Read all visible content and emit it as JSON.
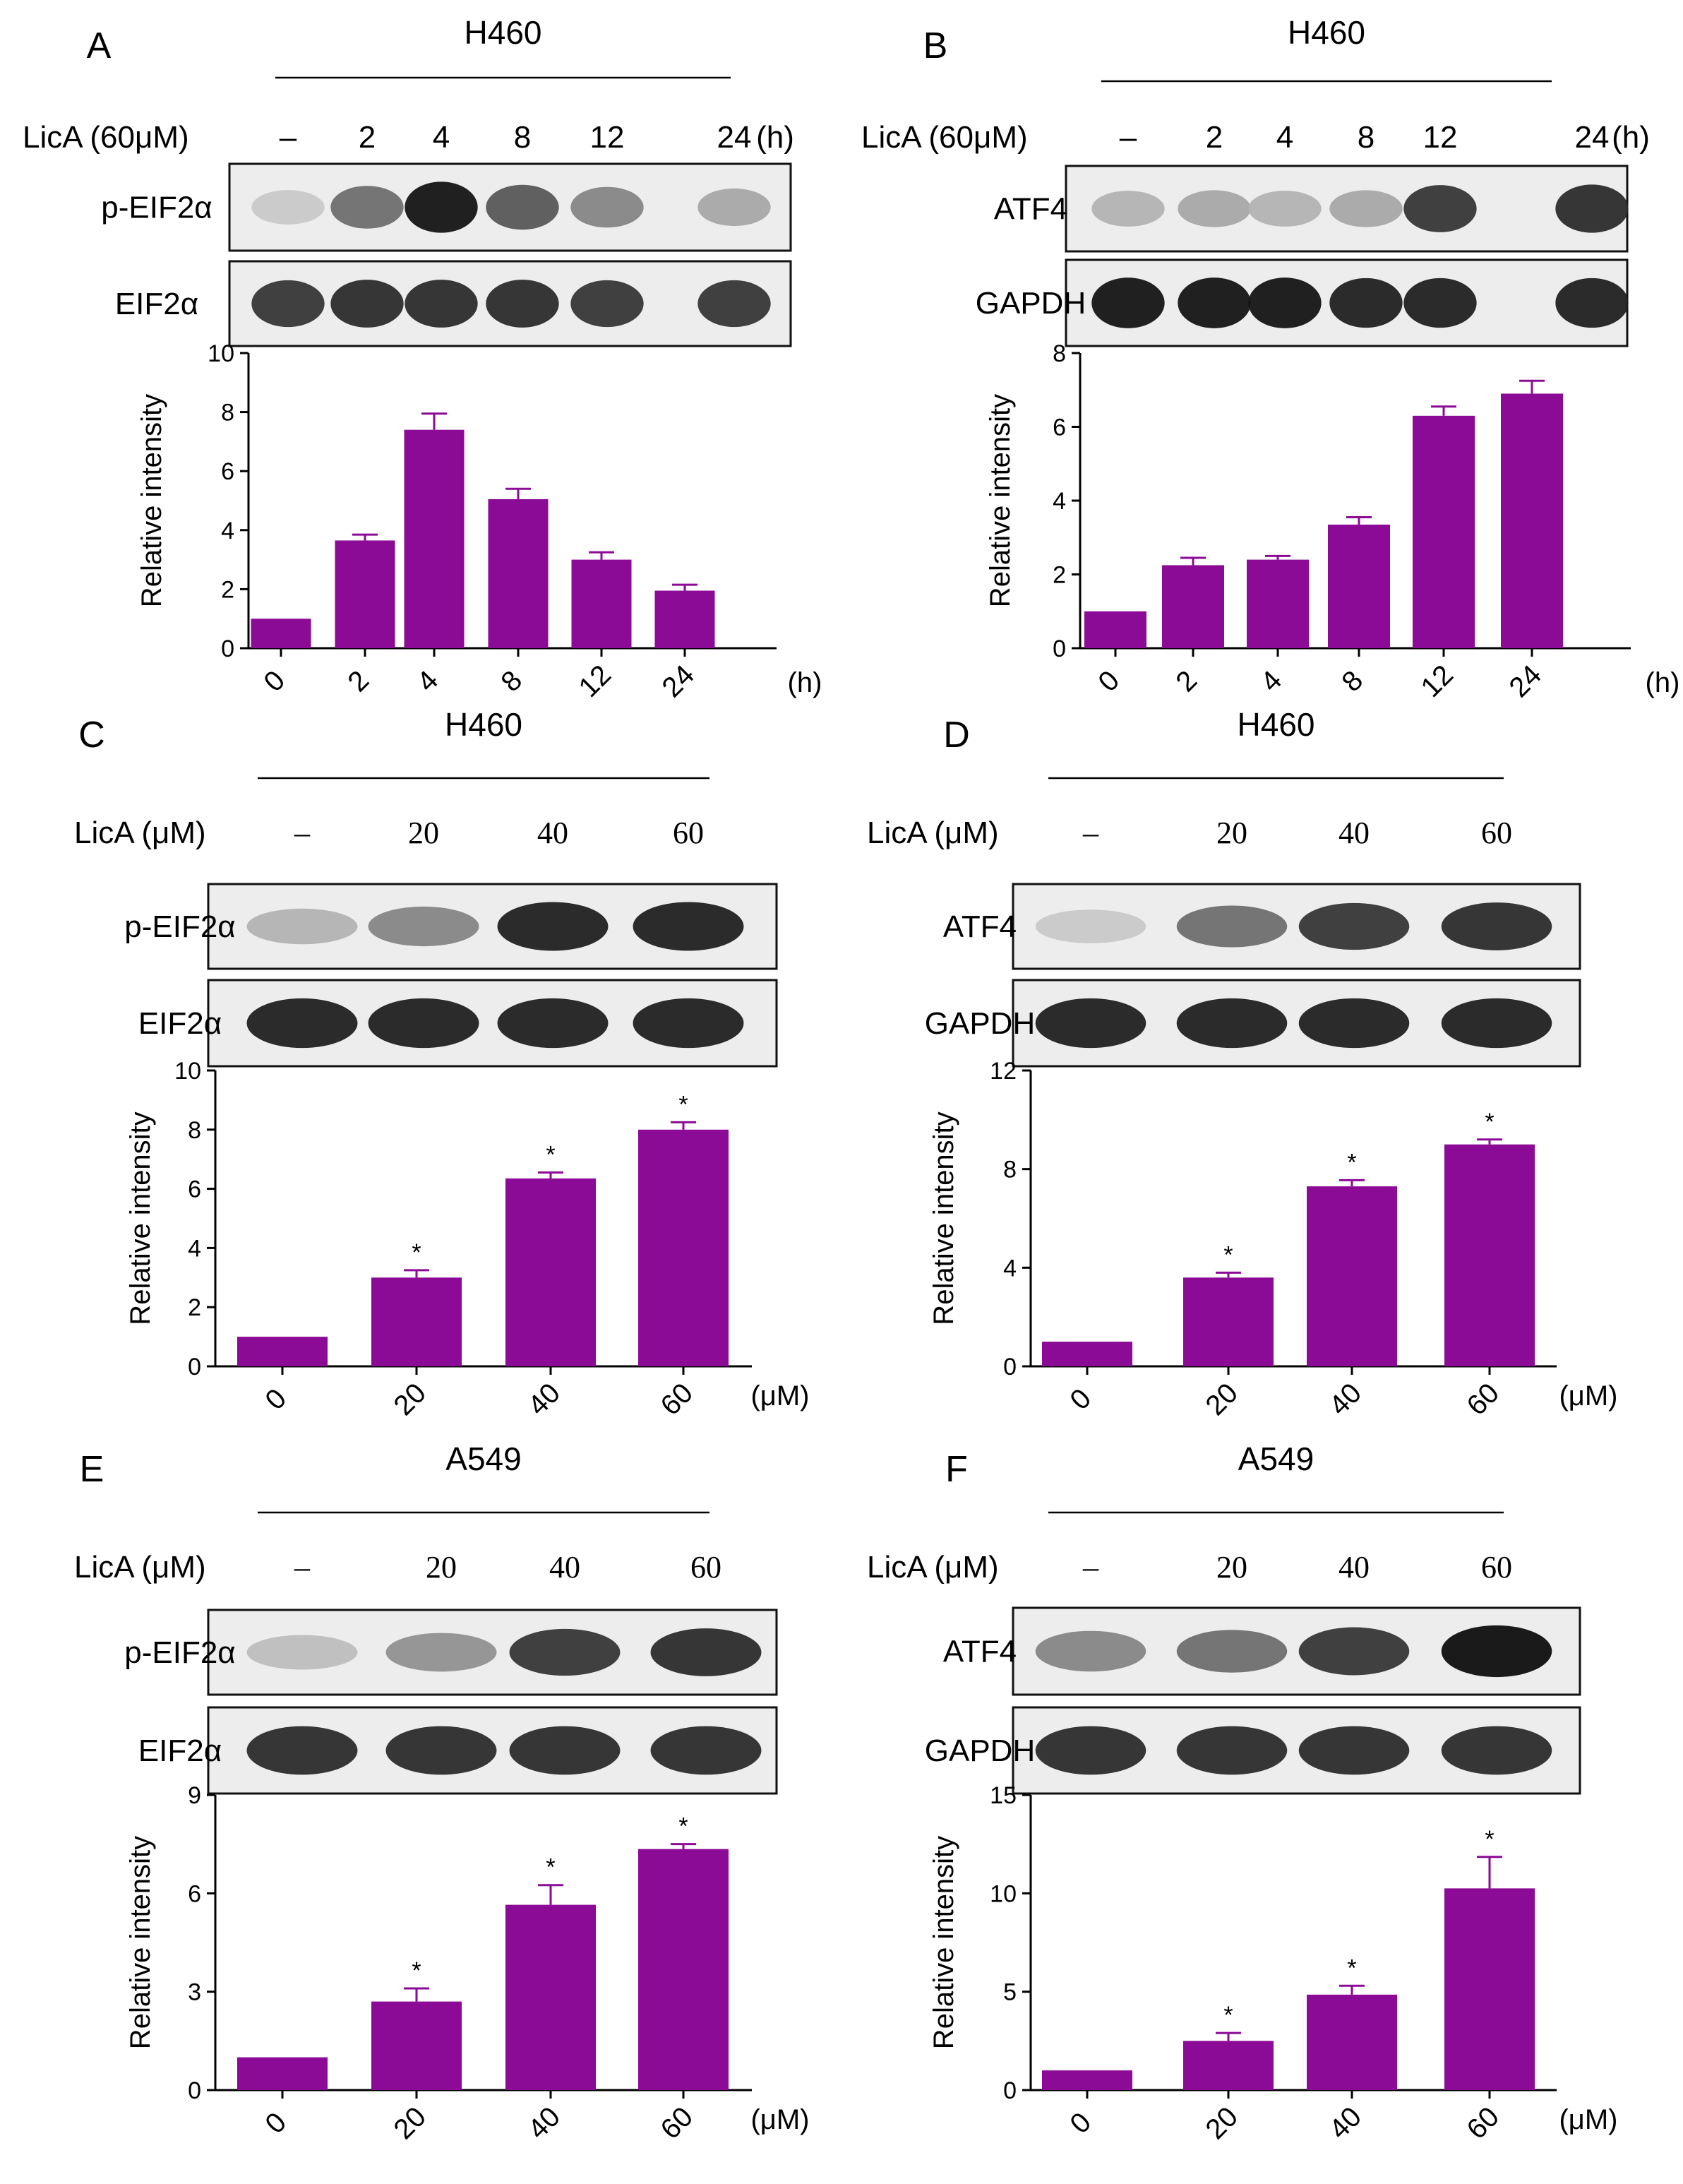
{
  "accent_color": "#8B0A96",
  "chart_data": [
    {
      "id": "A",
      "type": "bar",
      "panel_label": "A",
      "cell_line": "H460",
      "treatment_label": "LicA (60μM)",
      "lane_labels": [
        "–",
        "2",
        "4",
        "8",
        "12",
        "24"
      ],
      "lane_unit": "(h)",
      "blots": [
        {
          "label": "p-EIF2α",
          "intensity": [
            0.15,
            0.55,
            0.95,
            0.65,
            0.45,
            0.3
          ]
        },
        {
          "label": "EIF2α",
          "intensity": [
            0.8,
            0.85,
            0.85,
            0.85,
            0.8,
            0.8
          ]
        }
      ],
      "categories": [
        "0",
        "2",
        "4",
        "8",
        "12",
        "24"
      ],
      "values": [
        1,
        3.65,
        7.4,
        5.05,
        3.0,
        1.95
      ],
      "errors": [
        0,
        0.2,
        0.55,
        0.35,
        0.25,
        0.2
      ],
      "significance": [
        "",
        "",
        "",
        "",
        "",
        ""
      ],
      "xlabel": "(h)",
      "ylabel": "Relative intensity",
      "ylim": [
        0,
        10
      ],
      "yticks": [
        0,
        2,
        4,
        6,
        8,
        10
      ]
    },
    {
      "id": "B",
      "type": "bar",
      "panel_label": "B",
      "cell_line": "H460",
      "treatment_label": "LicA (60μM)",
      "lane_labels": [
        "–",
        "2",
        "4",
        "8",
        "12",
        "24"
      ],
      "lane_unit": "(h)",
      "blots": [
        {
          "label": "ATF4",
          "intensity": [
            0.25,
            0.3,
            0.25,
            0.3,
            0.8,
            0.85
          ]
        },
        {
          "label": "GAPDH",
          "intensity": [
            0.95,
            0.95,
            0.95,
            0.9,
            0.9,
            0.9
          ]
        }
      ],
      "categories": [
        "0",
        "2",
        "4",
        "8",
        "12",
        "24"
      ],
      "values": [
        1,
        2.25,
        2.4,
        3.35,
        6.3,
        6.9
      ],
      "errors": [
        0,
        0.2,
        0.1,
        0.2,
        0.25,
        0.35
      ],
      "significance": [
        "",
        "",
        "",
        "",
        "",
        ""
      ],
      "xlabel": "(h)",
      "ylabel": "Relative intensity",
      "ylim": [
        0,
        8
      ],
      "yticks": [
        0,
        2,
        4,
        6,
        8
      ]
    },
    {
      "id": "C",
      "type": "bar",
      "panel_label": "C",
      "cell_line": "H460",
      "treatment_label": "LicA (μM)",
      "lane_labels": [
        "–",
        "20",
        "40",
        "60"
      ],
      "lane_unit": "",
      "blots": [
        {
          "label": "p-EIF2α",
          "intensity": [
            0.25,
            0.45,
            0.9,
            0.9
          ]
        },
        {
          "label": "EIF2α",
          "intensity": [
            0.9,
            0.9,
            0.9,
            0.9
          ]
        }
      ],
      "categories": [
        "0",
        "20",
        "40",
        "60"
      ],
      "values": [
        1,
        3.0,
        6.35,
        8.0
      ],
      "errors": [
        0,
        0.25,
        0.2,
        0.25
      ],
      "significance": [
        "",
        "*",
        "*",
        "*"
      ],
      "xlabel": "(μM)",
      "ylabel": "Relative intensity",
      "ylim": [
        0,
        10
      ],
      "yticks": [
        0,
        2,
        4,
        6,
        8,
        10
      ]
    },
    {
      "id": "D",
      "type": "bar",
      "panel_label": "D",
      "cell_line": "H460",
      "treatment_label": "LicA (μM)",
      "lane_labels": [
        "–",
        "20",
        "40",
        "60"
      ],
      "lane_unit": "",
      "blots": [
        {
          "label": "ATF4",
          "intensity": [
            0.15,
            0.55,
            0.8,
            0.85
          ]
        },
        {
          "label": "GAPDH",
          "intensity": [
            0.9,
            0.9,
            0.9,
            0.9
          ]
        }
      ],
      "categories": [
        "0",
        "20",
        "40",
        "60"
      ],
      "values": [
        1,
        3.6,
        7.3,
        9.0
      ],
      "errors": [
        0,
        0.2,
        0.25,
        0.2
      ],
      "significance": [
        "",
        "*",
        "*",
        "*"
      ],
      "xlabel": "(μM)",
      "ylabel": "Relative intensity",
      "ylim": [
        0,
        12
      ],
      "yticks": [
        0,
        4,
        8,
        12
      ]
    },
    {
      "id": "E",
      "type": "bar",
      "panel_label": "E",
      "cell_line": "A549",
      "treatment_label": "LicA (μM)",
      "lane_labels": [
        "–",
        "20",
        "40",
        "60"
      ],
      "lane_unit": "",
      "blots": [
        {
          "label": "p-EIF2α",
          "intensity": [
            0.2,
            0.4,
            0.8,
            0.85
          ]
        },
        {
          "label": "EIF2α",
          "intensity": [
            0.85,
            0.85,
            0.85,
            0.85
          ]
        }
      ],
      "categories": [
        "0",
        "20",
        "40",
        "60"
      ],
      "values": [
        1,
        2.7,
        5.65,
        7.35
      ],
      "errors": [
        0,
        0.4,
        0.6,
        0.15
      ],
      "significance": [
        "",
        "*",
        "*",
        "*"
      ],
      "xlabel": "(μM)",
      "ylabel": "Relative intensity",
      "ylim": [
        0,
        9
      ],
      "yticks": [
        0,
        3,
        6,
        9
      ]
    },
    {
      "id": "F",
      "type": "bar",
      "panel_label": "F",
      "cell_line": "A549",
      "treatment_label": "LicA (μM)",
      "lane_labels": [
        "–",
        "20",
        "40",
        "60"
      ],
      "lane_unit": "",
      "blots": [
        {
          "label": "ATF4",
          "intensity": [
            0.45,
            0.55,
            0.8,
            0.98
          ]
        },
        {
          "label": "GAPDH",
          "intensity": [
            0.85,
            0.85,
            0.85,
            0.85
          ]
        }
      ],
      "categories": [
        "0",
        "20",
        "40",
        "60"
      ],
      "values": [
        1,
        2.5,
        4.85,
        10.25
      ],
      "errors": [
        0,
        0.4,
        0.45,
        1.6
      ],
      "significance": [
        "",
        "*",
        "*",
        "*"
      ],
      "xlabel": "(μM)",
      "ylabel": "Relative intensity",
      "ylim": [
        0,
        15
      ],
      "yticks": [
        0,
        5,
        10,
        15
      ]
    }
  ]
}
